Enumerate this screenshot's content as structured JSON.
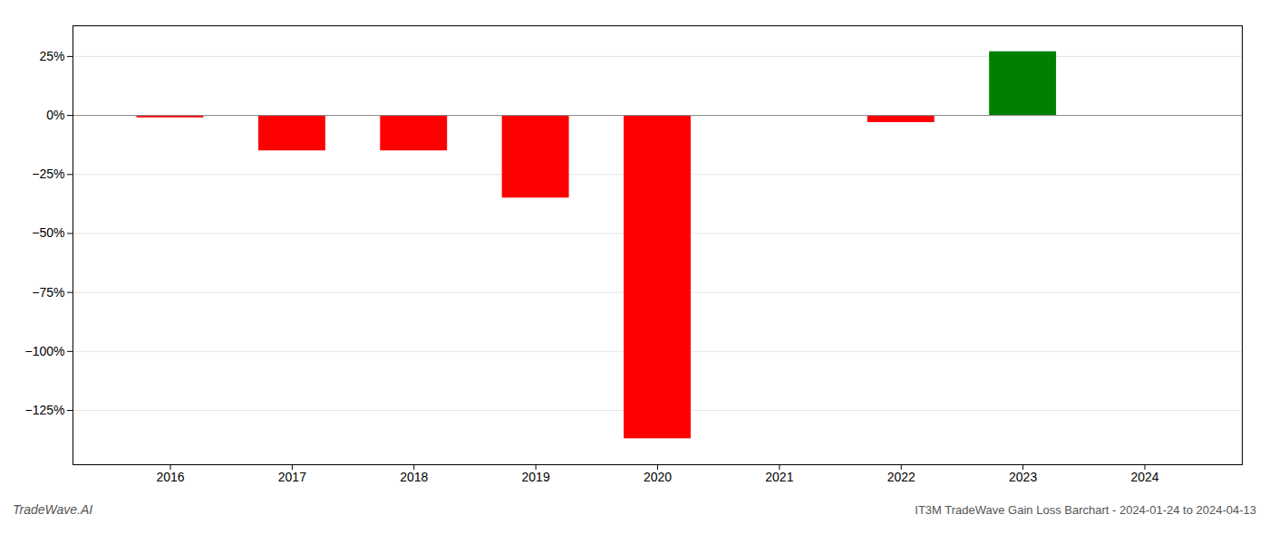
{
  "chart_data": {
    "type": "bar",
    "title": "IT3M TradeWave Gain Loss Barchart - 2024-01-24 to 2024-04-13",
    "annotations": [
      "TradeWave.AI"
    ],
    "x": [
      2016,
      2017,
      2018,
      2019,
      2020,
      2021,
      2022,
      2023,
      2024
    ],
    "values": [
      -1.0,
      -15.0,
      -15.0,
      -35.0,
      -137.0,
      0.0,
      -3.0,
      27.0,
      0.0
    ],
    "colors": [
      "#ff0000",
      "#ff0000",
      "#ff0000",
      "#ff0000",
      "#ff0000",
      "#ff0000",
      "#ff0000",
      "#008000",
      "#ff0000"
    ],
    "xlim": [
      2015.2,
      2024.8
    ],
    "xticks": [
      2016,
      2017,
      2018,
      2019,
      2020,
      2021,
      2022,
      2023,
      2024
    ],
    "ylim": [
      -148,
      38
    ],
    "yticks": [
      {
        "value": 25,
        "label": "25%"
      },
      {
        "value": 0,
        "label": "0%"
      },
      {
        "value": -25,
        "label": "−25%"
      },
      {
        "value": -50,
        "label": "−50%"
      },
      {
        "value": -75,
        "label": "−75%"
      },
      {
        "value": -100,
        "label": "−100%"
      },
      {
        "value": -125,
        "label": "−125%"
      }
    ],
    "grid": true
  }
}
